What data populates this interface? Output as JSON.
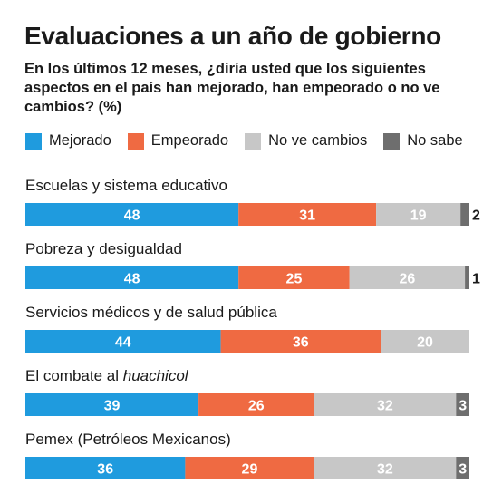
{
  "header": {
    "title": "Evaluaciones a un año de gobierno",
    "subtitle": "En los últimos 12 meses, ¿diría usted que los siguientes aspectos en el país han mejorado, han empeorado o no ve cambios? (%)"
  },
  "legend": [
    {
      "label": "Mejorado",
      "color": "#1f9bde"
    },
    {
      "label": "Empeorado",
      "color": "#ef6a42"
    },
    {
      "label": "No ve cambios",
      "color": "#c7c7c7"
    },
    {
      "label": "No sabe",
      "color": "#6e6e6e"
    }
  ],
  "chart_data": {
    "type": "bar",
    "orientation": "horizontal",
    "stacked": true,
    "categories": [
      {
        "text": "Escuelas y sistema educativo"
      },
      {
        "text": "Pobreza y desigualdad"
      },
      {
        "text": "Servicios médicos y de salud pública"
      },
      {
        "text": "El combate al ",
        "italic": "huachicol"
      },
      {
        "text": "Pemex (Petróleos Mexicanos)"
      }
    ],
    "series": [
      {
        "name": "Mejorado",
        "color": "#1f9bde",
        "values": [
          48,
          48,
          44,
          39,
          36
        ]
      },
      {
        "name": "Empeorado",
        "color": "#ef6a42",
        "values": [
          31,
          25,
          36,
          26,
          29
        ]
      },
      {
        "name": "No ve cambios",
        "color": "#c7c7c7",
        "values": [
          19,
          26,
          20,
          32,
          32
        ]
      },
      {
        "name": "No sabe",
        "color": "#6e6e6e",
        "values": [
          2,
          1,
          0,
          3,
          3
        ]
      }
    ],
    "xlim": [
      0,
      100
    ],
    "grid": false,
    "legend_position": "top"
  }
}
